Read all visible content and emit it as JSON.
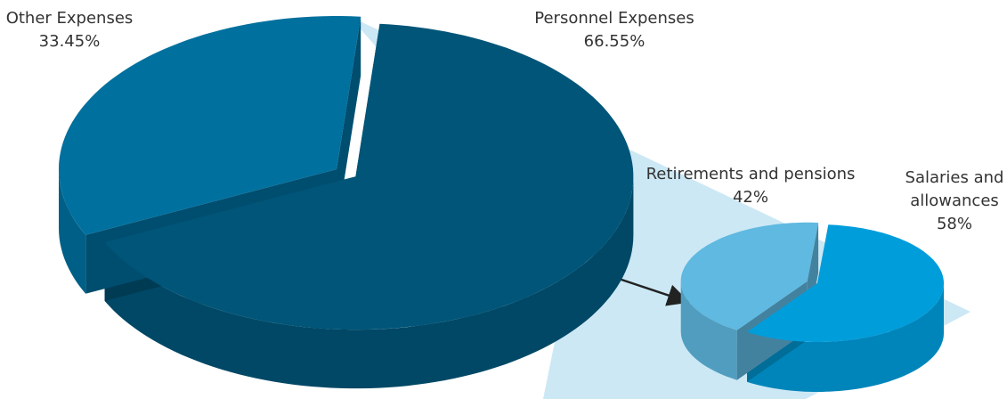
{
  "chart_data": [
    {
      "type": "pie",
      "categories": [
        "Other Expenses",
        "Personnel Expenses"
      ],
      "values": [
        33.45,
        66.55
      ],
      "value_labels": [
        "33.45%",
        "66.55%"
      ],
      "colors": [
        "#00709e",
        "#005578"
      ]
    },
    {
      "type": "pie",
      "categories": [
        "Retirements and pensions",
        "Salaries and allowances"
      ],
      "values": [
        42,
        58
      ],
      "value_labels": [
        "42%",
        "58%"
      ],
      "colors": [
        "#5fb9e1",
        "#009ddb"
      ]
    }
  ]
}
